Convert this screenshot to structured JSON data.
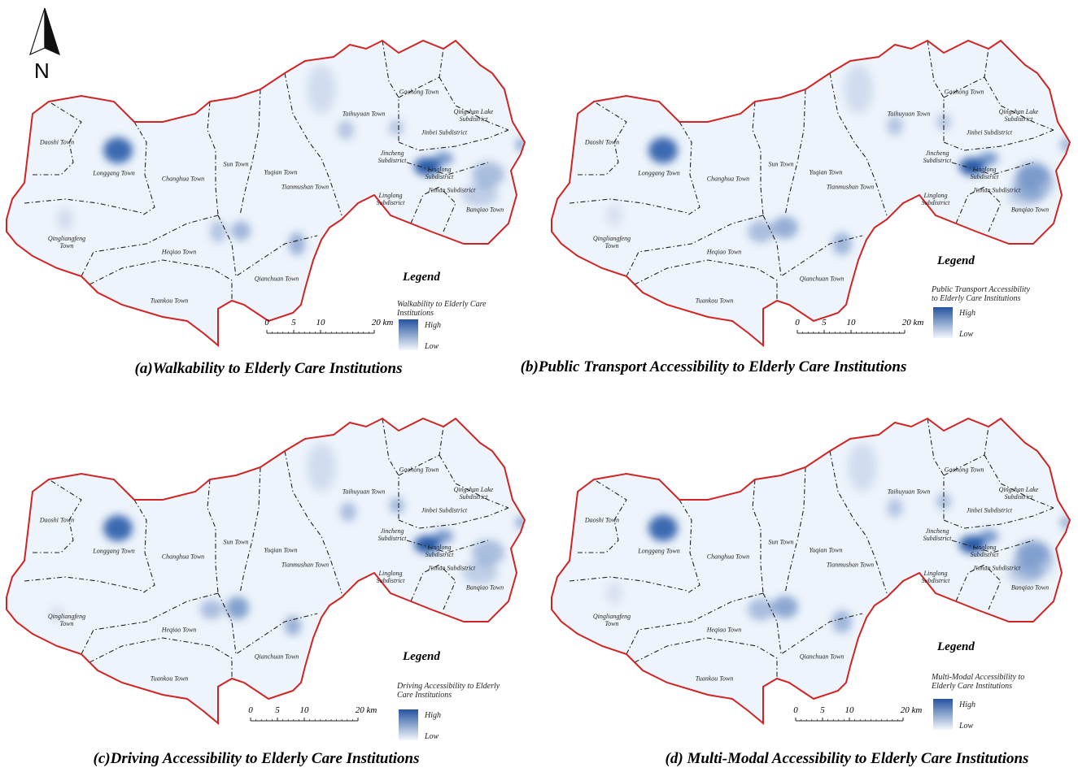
{
  "north_arrow": {
    "label": "N"
  },
  "legend_labels": {
    "title": "Legend",
    "high": "High",
    "low": "Low"
  },
  "scale_bar": {
    "ticks": [
      0,
      5,
      10,
      {
        "value": 20,
        "label": "20 km"
      }
    ]
  },
  "towns": [
    "Daoshi Town",
    "Longgang Town",
    "Changhua Town",
    "Sun Town",
    "Yuqian Town",
    "Tianmushan Town",
    "Taihuyuan Town",
    "Gaohong Town",
    "Qingshan Lake Subdistrict",
    "Jinbei Subdistrict",
    "Jincheng Subdistrict",
    "Linglong Subdistrict",
    "Jinnan Subdistrict",
    "Linglong Subdistrict",
    "Banqiao Town",
    "Qingliangfeng Town",
    "Heqiao Town",
    "Qianchuan Town",
    "Tuankou Town"
  ],
  "panels": [
    {
      "caption": "(a)Walkability to Elderly Care Institutions",
      "legend_subtitle": "Walkability to Elderly Care Institutions"
    },
    {
      "caption": "(b)Public Transport Accessibility to Elderly Care Institutions",
      "legend_subtitle": "Public Transport Accessibility to Elderly Care Institutions"
    },
    {
      "caption": "(c)Driving Accessibility to Elderly Care Institutions",
      "legend_subtitle": "Driving Accessibility to Elderly Care Institutions"
    },
    {
      "caption": "(d) Multi-Modal Accessibility to Elderly Care Institutions",
      "legend_subtitle": "Multi-Modal Accessibility to Elderly Care Institutions"
    }
  ]
}
